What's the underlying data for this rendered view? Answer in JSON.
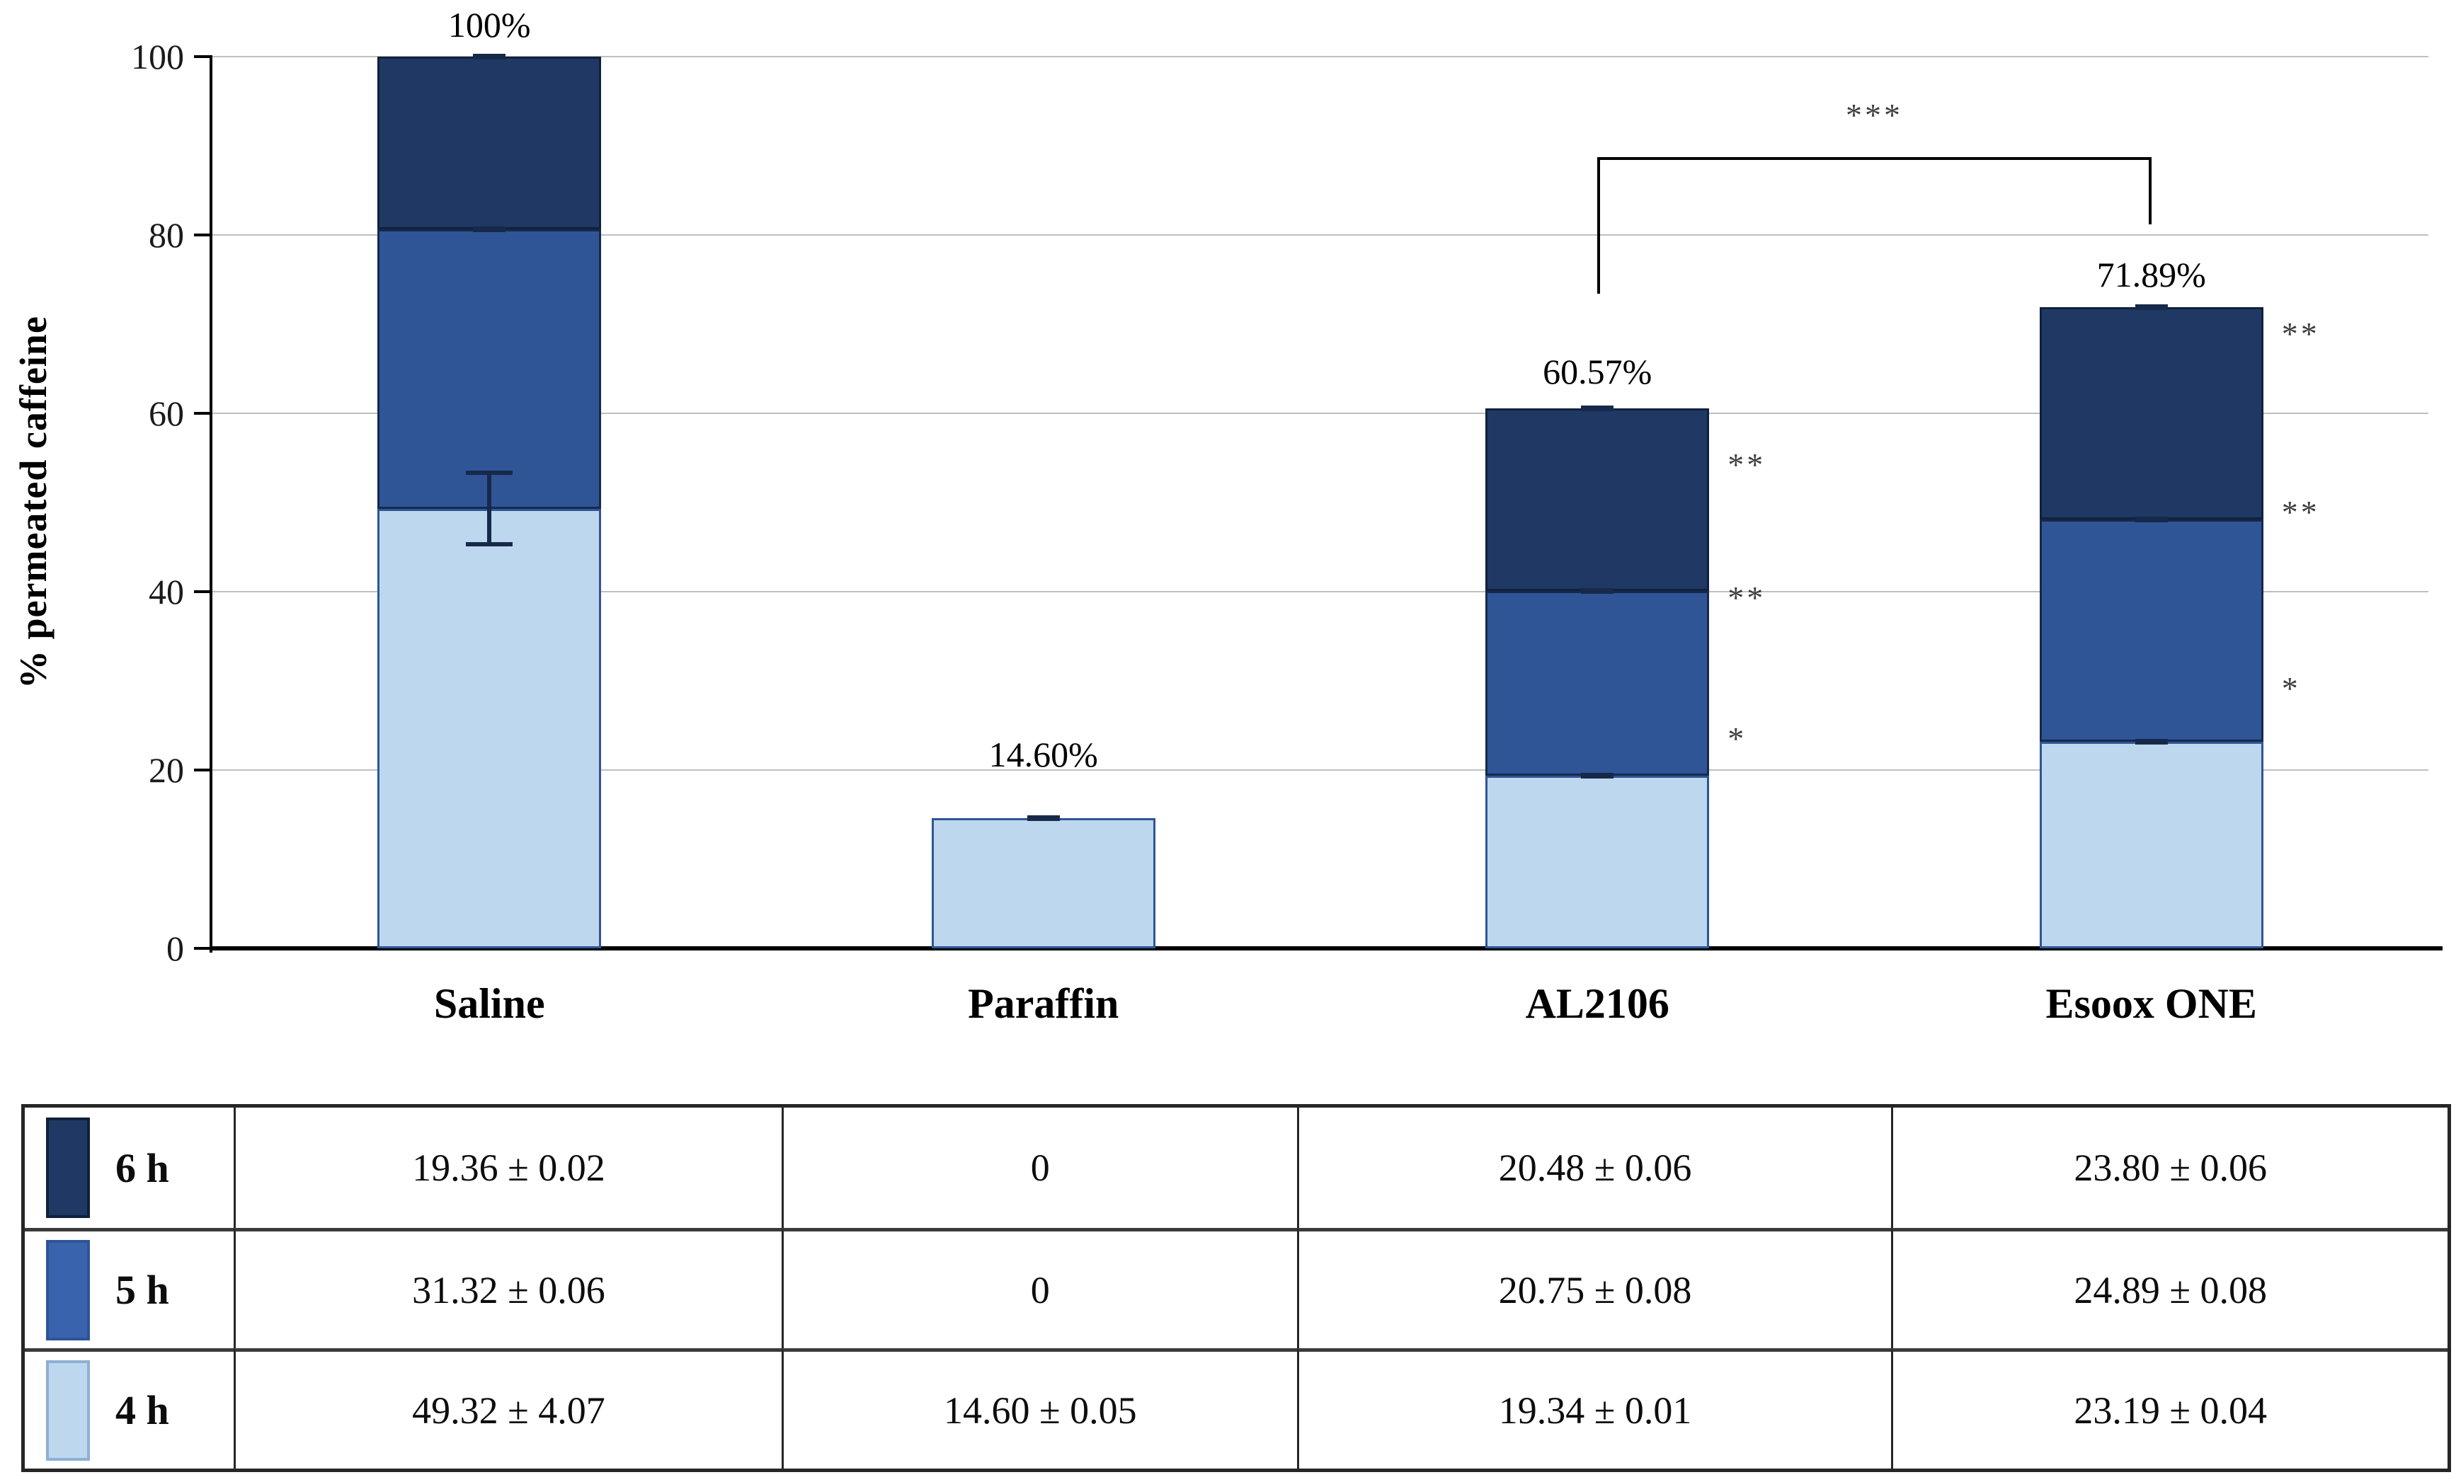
{
  "chart_data": {
    "type": "bar",
    "stacked": true,
    "title": "",
    "xlabel": "",
    "ylabel": "% permeated caffeine",
    "ylim": [
      0,
      100
    ],
    "yticks": [
      0,
      20,
      40,
      60,
      80,
      100
    ],
    "grid": true,
    "legend_position": "table-below",
    "categories": [
      "Saline",
      "Paraffin",
      "AL2106",
      "Esoox ONE"
    ],
    "series": [
      {
        "name": "4 h",
        "color": "#BDD7EE",
        "border": "#2F5597",
        "values": [
          49.32,
          14.6,
          19.34,
          23.19
        ],
        "errors": [
          4.07,
          0.05,
          0.01,
          0.04
        ]
      },
      {
        "name": "5 h",
        "color": "#2F5597",
        "border": "#17294A",
        "values": [
          31.32,
          0,
          20.75,
          24.89
        ],
        "errors": [
          0.06,
          0,
          0.08,
          0.08
        ]
      },
      {
        "name": "6 h",
        "color": "#1F3864",
        "border": "#10213D",
        "values": [
          19.36,
          0,
          20.48,
          23.8
        ],
        "errors": [
          0.02,
          0,
          0.06,
          0.06
        ]
      }
    ],
    "totals": [
      100,
      14.6,
      60.57,
      71.89
    ],
    "total_labels": [
      "100%",
      "14.60%",
      "60.57%",
      "71.89%"
    ],
    "significance": {
      "bracket": {
        "label": "***",
        "from": "AL2106",
        "to": "Esoox ONE"
      },
      "side_markers": [
        {
          "category": "AL2106",
          "marks": [
            {
              "text": "**",
              "at": 55.0
            },
            {
              "text": "**",
              "at": 40.1
            },
            {
              "text": "*",
              "at": 24.3
            }
          ]
        },
        {
          "category": "Esoox ONE",
          "marks": [
            {
              "text": "**",
              "at": 69.7
            },
            {
              "text": "**",
              "at": 49.7
            },
            {
              "text": "*",
              "at": 29.9
            }
          ]
        }
      ]
    }
  },
  "table": {
    "rows": [
      {
        "label": "6 h",
        "swatch": {
          "fill": "#1F3864",
          "border": "#10213D"
        },
        "values": [
          "19.36 ± 0.02",
          "0",
          "20.48 ± 0.06",
          "23.80 ± 0.06"
        ]
      },
      {
        "label": "5 h",
        "swatch": {
          "fill": "#3A63AE",
          "border": "#2F5597"
        },
        "values": [
          "31.32 ± 0.06",
          "0",
          "20.75 ± 0.08",
          "24.89 ± 0.08"
        ]
      },
      {
        "label": "4 h",
        "swatch": {
          "fill": "#BDD7EE",
          "border": "#8FAFD4"
        },
        "values": [
          "49.32 ± 4.07",
          "14.60 ± 0.05",
          "19.34 ± 0.01",
          "23.19 ± 0.04"
        ]
      }
    ]
  },
  "colors": {
    "gridline": "#BFBFBF",
    "axis": "#000000",
    "error_bar": "#17294A",
    "star": "#3d3d3d",
    "table_border": "#262626"
  }
}
